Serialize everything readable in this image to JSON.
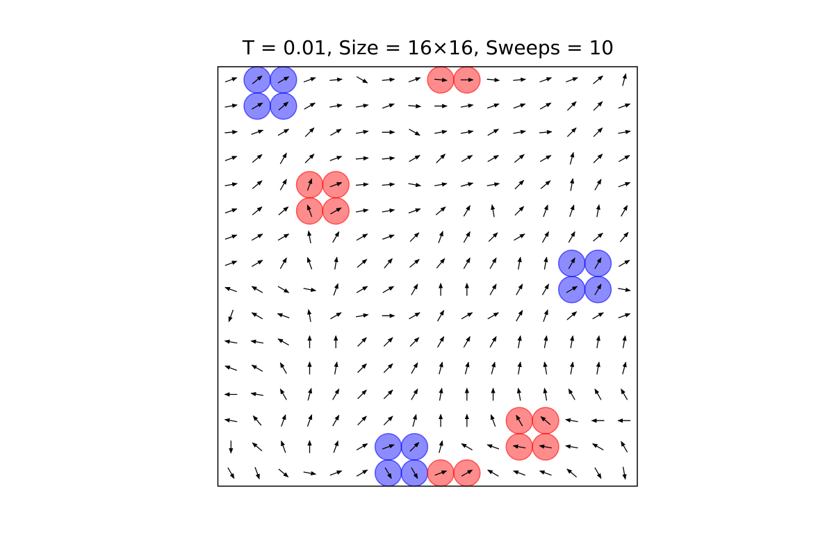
{
  "chart_data": {
    "type": "quiver",
    "title": "T = 0.01, Size = 16×16, Sweeps = 10",
    "xlabel": "",
    "ylabel": "",
    "xlim": [
      -0.5,
      15.5
    ],
    "ylim": [
      -0.5,
      15.5
    ],
    "axis_ticks": false,
    "grid": false,
    "colors": {
      "arrow": "#000000",
      "vortex_positive": "#ff0000",
      "vortex_negative": "#0000ff",
      "frame": "#000000"
    },
    "angles_deg": [
      [
        20,
        40,
        30,
        20,
        5,
        -30,
        5,
        20,
        -5,
        0,
        -5,
        5,
        20,
        20,
        40,
        75
      ],
      [
        10,
        30,
        40,
        30,
        10,
        10,
        20,
        -5,
        0,
        10,
        20,
        20,
        30,
        45,
        45,
        20
      ],
      [
        5,
        20,
        30,
        45,
        30,
        10,
        0,
        -30,
        10,
        10,
        30,
        10,
        5,
        45,
        45,
        10
      ],
      [
        20,
        40,
        60,
        45,
        20,
        5,
        5,
        30,
        45,
        30,
        30,
        40,
        30,
        75,
        45,
        30
      ],
      [
        10,
        40,
        60,
        70,
        20,
        5,
        5,
        -10,
        10,
        15,
        10,
        45,
        40,
        80,
        60,
        20
      ],
      [
        20,
        40,
        40,
        110,
        30,
        10,
        10,
        20,
        40,
        60,
        100,
        45,
        70,
        70,
        80,
        60
      ],
      [
        20,
        30,
        30,
        100,
        60,
        30,
        20,
        45,
        70,
        60,
        45,
        30,
        60,
        60,
        40,
        50
      ],
      [
        20,
        30,
        60,
        110,
        80,
        40,
        50,
        40,
        50,
        60,
        60,
        80,
        80,
        60,
        60,
        30
      ],
      [
        160,
        150,
        -30,
        -10,
        70,
        30,
        30,
        60,
        90,
        90,
        60,
        60,
        60,
        30,
        60,
        -10
      ],
      [
        250,
        150,
        160,
        100,
        30,
        10,
        0,
        30,
        60,
        30,
        30,
        60,
        70,
        40,
        30,
        20
      ],
      [
        170,
        170,
        150,
        90,
        90,
        45,
        45,
        45,
        60,
        60,
        60,
        80,
        80,
        80,
        80,
        80
      ],
      [
        160,
        150,
        120,
        90,
        80,
        45,
        45,
        60,
        75,
        75,
        75,
        80,
        100,
        80,
        80,
        75
      ],
      [
        180,
        170,
        120,
        75,
        60,
        45,
        45,
        60,
        80,
        90,
        90,
        100,
        100,
        120,
        120,
        120
      ],
      [
        170,
        130,
        70,
        70,
        60,
        45,
        45,
        75,
        90,
        90,
        110,
        120,
        140,
        170,
        180,
        180
      ],
      [
        270,
        140,
        110,
        90,
        70,
        30,
        20,
        45,
        75,
        150,
        160,
        170,
        170,
        170,
        150,
        120
      ],
      [
        -60,
        -70,
        -40,
        -10,
        20,
        30,
        -60,
        -60,
        20,
        30,
        150,
        160,
        160,
        140,
        -60,
        -80
      ]
    ],
    "vortices": [
      {
        "x": 1.5,
        "y": 14.5,
        "sign": -1
      },
      {
        "x": 8.5,
        "y": 15.0,
        "sign": 1
      },
      {
        "x": 3.5,
        "y": 10.5,
        "sign": 1
      },
      {
        "x": 13.5,
        "y": 7.5,
        "sign": -1
      },
      {
        "x": 11.5,
        "y": 1.5,
        "sign": 1
      },
      {
        "x": 6.5,
        "y": 0.5,
        "sign": -1
      },
      {
        "x": 8.5,
        "y": 0.0,
        "sign": 1
      }
    ]
  }
}
